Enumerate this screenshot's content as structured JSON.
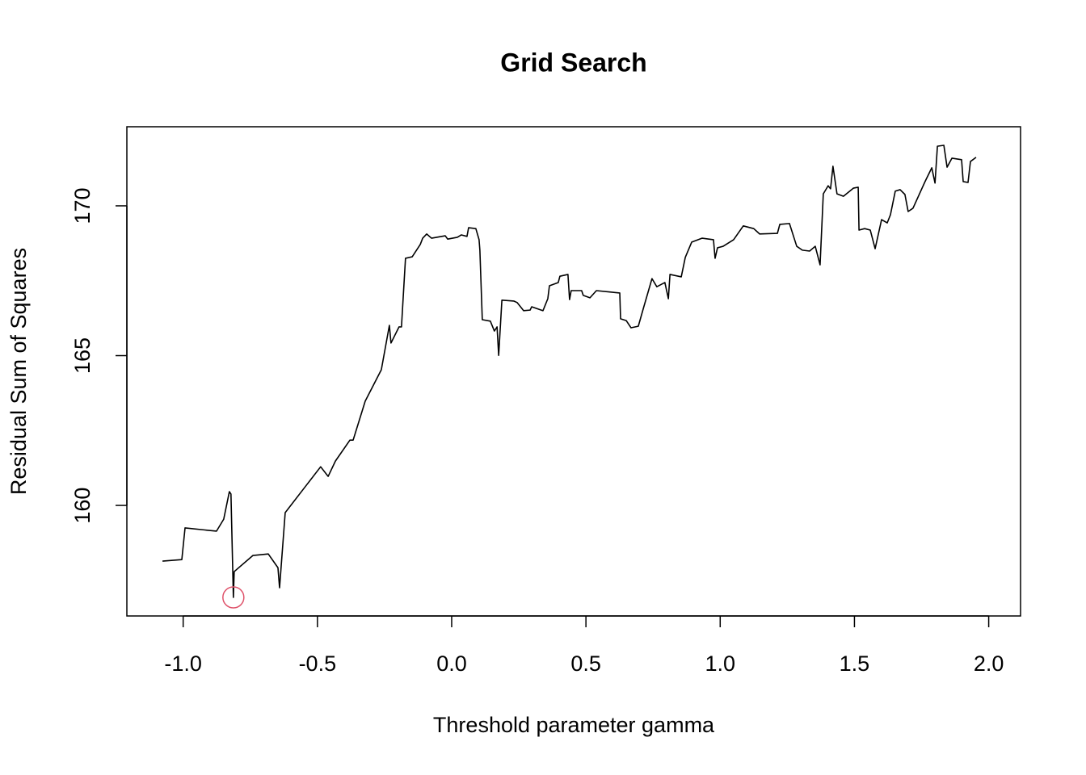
{
  "chart_data": {
    "type": "line",
    "title": "Grid Search",
    "x_label": "Threshold parameter gamma",
    "y_label": "Residual Sum of Squares",
    "xlim": [
      -1.2097,
      2.1186
    ],
    "ylim": [
      156.31,
      172.64
    ],
    "xticks": [
      {
        "value": -1,
        "label": "-1.0"
      },
      -0.5,
      {
        "value": 0,
        "label": "0.0"
      },
      0.5,
      {
        "value": 1,
        "label": "1.0"
      },
      1.5,
      {
        "value": 2,
        "label": "2.0"
      }
    ],
    "yticks": [
      160,
      165,
      170
    ],
    "grid": false,
    "series": [
      {
        "color": "#000000",
        "style": "line",
        "x": [
          -1.077,
          -1.005,
          -0.993,
          -0.876,
          -0.849,
          -0.828,
          -0.822,
          -0.813,
          -0.81,
          -0.74,
          -0.683,
          -0.647,
          -0.641,
          -0.62,
          -0.488,
          -0.46,
          -0.433,
          -0.379,
          -0.367,
          -0.322,
          -0.262,
          -0.232,
          -0.226,
          -0.196,
          -0.187,
          -0.172,
          -0.147,
          -0.117,
          -0.108,
          -0.093,
          -0.075,
          -0.024,
          -0.015,
          0.021,
          0.036,
          0.057,
          0.063,
          0.09,
          0.102,
          0.105,
          0.114,
          0.144,
          0.159,
          0.169,
          0.175,
          0.187,
          0.232,
          0.244,
          0.268,
          0.292,
          0.298,
          0.34,
          0.358,
          0.364,
          0.397,
          0.403,
          0.433,
          0.439,
          0.445,
          0.484,
          0.49,
          0.515,
          0.539,
          0.593,
          0.626,
          0.629,
          0.65,
          0.668,
          0.695,
          0.713,
          0.746,
          0.764,
          0.794,
          0.807,
          0.813,
          0.855,
          0.87,
          0.894,
          0.933,
          0.975,
          0.981,
          0.99,
          1.011,
          1.05,
          1.086,
          1.125,
          1.147,
          1.213,
          1.222,
          1.258,
          1.285,
          1.306,
          1.333,
          1.354,
          1.372,
          1.384,
          1.402,
          1.411,
          1.42,
          1.435,
          1.459,
          1.496,
          1.514,
          1.517,
          1.538,
          1.559,
          1.577,
          1.601,
          1.622,
          1.634,
          1.652,
          1.67,
          1.688,
          1.7,
          1.718,
          1.763,
          1.788,
          1.8,
          1.809,
          1.833,
          1.845,
          1.863,
          1.899,
          1.905,
          1.923,
          1.932,
          1.953
        ],
        "values": [
          158.14,
          158.19,
          159.25,
          159.14,
          159.54,
          160.46,
          160.38,
          156.93,
          157.79,
          158.33,
          158.38,
          157.92,
          157.25,
          159.76,
          161.29,
          160.97,
          161.48,
          162.18,
          162.18,
          163.48,
          164.53,
          166.01,
          165.42,
          165.96,
          165.96,
          168.25,
          168.3,
          168.71,
          168.92,
          169.06,
          168.92,
          169.0,
          168.89,
          168.95,
          169.03,
          168.98,
          169.27,
          169.24,
          168.87,
          168.52,
          166.2,
          166.15,
          165.82,
          165.96,
          165.01,
          166.85,
          166.82,
          166.77,
          166.5,
          166.52,
          166.63,
          166.5,
          166.9,
          167.33,
          167.44,
          167.65,
          167.71,
          166.87,
          167.17,
          167.17,
          167.01,
          166.93,
          167.17,
          167.12,
          167.09,
          166.23,
          166.17,
          165.93,
          165.98,
          166.55,
          167.57,
          167.3,
          167.44,
          166.9,
          167.71,
          167.63,
          168.28,
          168.79,
          168.92,
          168.87,
          168.25,
          168.6,
          168.65,
          168.87,
          169.33,
          169.24,
          169.06,
          169.08,
          169.38,
          169.41,
          168.65,
          168.52,
          168.49,
          168.65,
          168.03,
          170.4,
          170.67,
          170.57,
          171.32,
          170.4,
          170.32,
          170.59,
          170.62,
          169.19,
          169.24,
          169.19,
          168.57,
          169.54,
          169.43,
          169.7,
          170.49,
          170.54,
          170.38,
          169.81,
          169.92,
          170.81,
          171.27,
          170.76,
          171.99,
          172.02,
          171.29,
          171.59,
          171.54,
          170.81,
          170.78,
          171.48,
          171.62
        ]
      },
      {
        "color": "#DF536B",
        "style": "point",
        "x": [
          -0.813
        ],
        "values": [
          156.93
        ]
      }
    ]
  }
}
